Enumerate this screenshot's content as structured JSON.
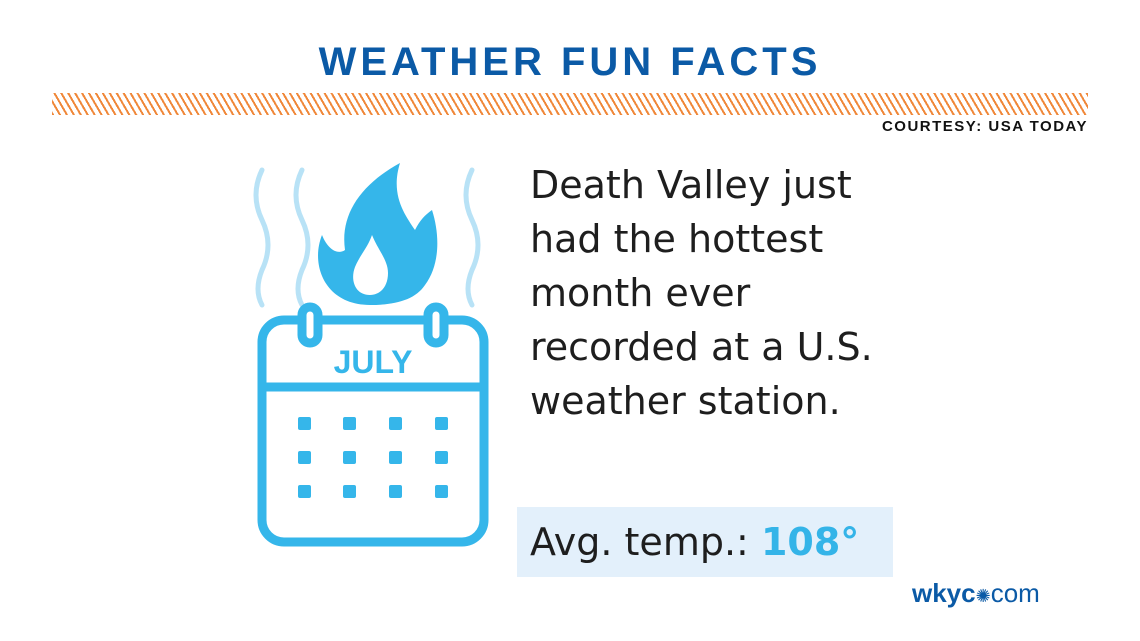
{
  "header": {
    "title": "WEATHER FUN FACTS",
    "courtesy": "COURTESY: USA TODAY"
  },
  "icon": {
    "name": "calendar-flame-icon",
    "month_label": "JULY",
    "color": "#35b6ea"
  },
  "fact": {
    "text": "Death Valley just had the hottest month ever recorded at a U.S. weather station.",
    "avg_label": "Avg. temp.:",
    "avg_value": "108°"
  },
  "logo": {
    "brand": "wkyc",
    "suffix": "com"
  },
  "colors": {
    "title": "#0b5aa6",
    "stripe": "#f0883a",
    "accent": "#34b4e8",
    "avg_bg": "#e3f0fb"
  }
}
